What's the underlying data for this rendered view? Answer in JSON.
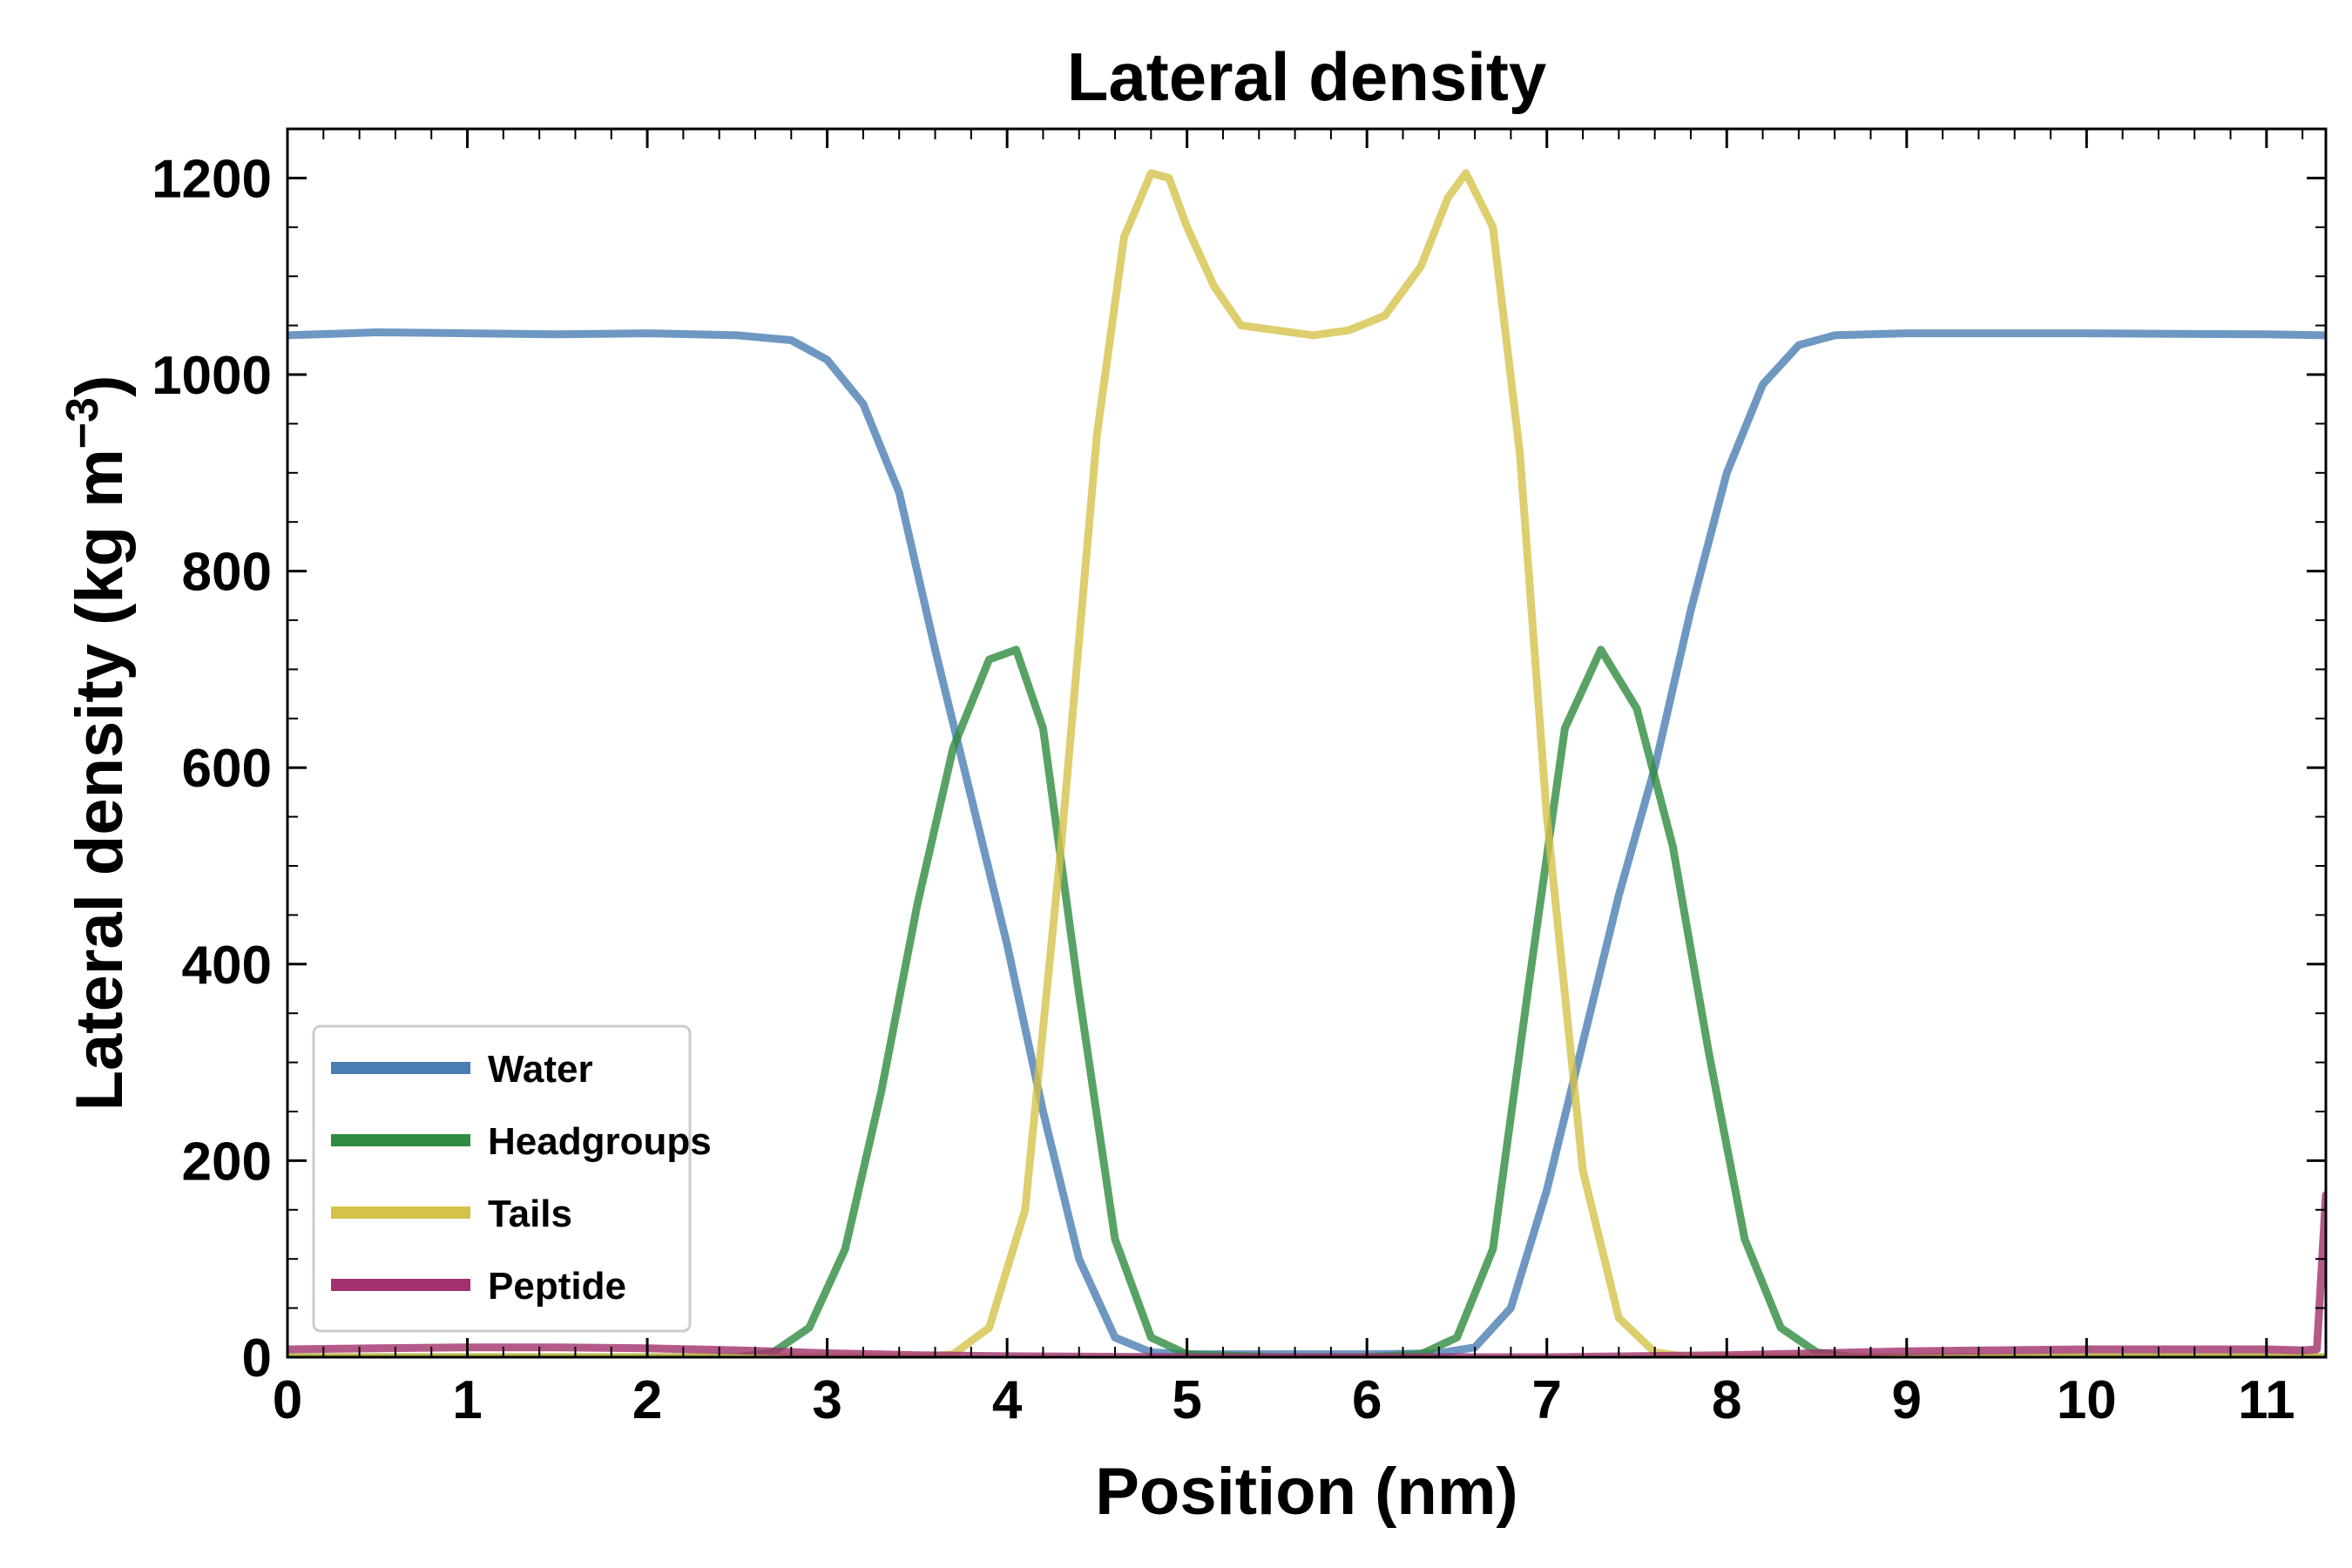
{
  "chart_data": {
    "type": "line",
    "title": "Lateral density",
    "xlabel": "Position (nm)",
    "ylabel": "Lateral density (kg m",
    "ylabel_sup": "−3",
    "ylabel_close": ")",
    "xlim": [
      0,
      11.33
    ],
    "ylim": [
      0,
      1250
    ],
    "xticks": [
      "0",
      "1",
      "2",
      "3",
      "4",
      "5",
      "6",
      "7",
      "8",
      "9",
      "10",
      "11"
    ],
    "yticks": [
      "0",
      "200",
      "400",
      "600",
      "800",
      "1000",
      "1200"
    ],
    "xtick_values": [
      0,
      1,
      2,
      3,
      4,
      5,
      6,
      7,
      8,
      9,
      10,
      11
    ],
    "ytick_values": [
      0,
      200,
      400,
      600,
      800,
      1000,
      1200
    ],
    "grid": false,
    "legend_position": "lower-left",
    "series": [
      {
        "name": "Water",
        "color": "#4a7eb3",
        "x": [
          0,
          0.5,
          1,
          1.5,
          2,
          2.5,
          2.8,
          3,
          3.2,
          3.4,
          3.6,
          3.8,
          4,
          4.2,
          4.4,
          4.6,
          4.8,
          5,
          6,
          6.4,
          6.6,
          6.8,
          7,
          7.2,
          7.4,
          7.6,
          7.8,
          8,
          8.2,
          8.4,
          8.6,
          9,
          10,
          11,
          11.33
        ],
        "y": [
          1040,
          1043,
          1042,
          1041,
          1042,
          1040,
          1035,
          1015,
          970,
          880,
          720,
          570,
          420,
          250,
          100,
          20,
          5,
          3,
          3,
          4,
          10,
          50,
          170,
          320,
          470,
          600,
          760,
          900,
          990,
          1030,
          1040,
          1042,
          1042,
          1041,
          1040
        ]
      },
      {
        "name": "Headgroups",
        "color": "#2e8b3f",
        "x": [
          0,
          2.5,
          2.7,
          2.9,
          3.1,
          3.3,
          3.5,
          3.7,
          3.9,
          4.05,
          4.2,
          4.4,
          4.6,
          4.8,
          5,
          5.5,
          6,
          6.3,
          6.5,
          6.7,
          6.9,
          7.1,
          7.3,
          7.5,
          7.7,
          7.9,
          8.1,
          8.3,
          8.5,
          8.7,
          9,
          11.33
        ],
        "y": [
          0,
          0,
          5,
          30,
          110,
          270,
          460,
          620,
          710,
          720,
          640,
          370,
          120,
          20,
          3,
          0,
          0,
          3,
          20,
          110,
          380,
          640,
          720,
          660,
          520,
          310,
          120,
          30,
          5,
          0,
          0,
          0
        ]
      },
      {
        "name": "Tails",
        "color": "#d4c24a",
        "x": [
          0,
          3.5,
          3.7,
          3.9,
          4.1,
          4.3,
          4.5,
          4.65,
          4.8,
          4.9,
          5,
          5.15,
          5.3,
          5.5,
          5.7,
          5.9,
          6.1,
          6.3,
          6.45,
          6.55,
          6.7,
          6.85,
          7,
          7.2,
          7.4,
          7.6,
          7.8,
          8,
          11.33
        ],
        "y": [
          0,
          0,
          3,
          30,
          150,
          520,
          940,
          1140,
          1205,
          1200,
          1150,
          1090,
          1050,
          1045,
          1040,
          1045,
          1060,
          1110,
          1180,
          1205,
          1150,
          920,
          550,
          190,
          40,
          5,
          0,
          0,
          0
        ]
      },
      {
        "name": "Peptide",
        "color": "#a1316d",
        "x": [
          0,
          0.5,
          1,
          1.5,
          2,
          2.5,
          3,
          3.5,
          4,
          5,
          6,
          7,
          8,
          8.5,
          9,
          9.5,
          10,
          10.5,
          11,
          11.2,
          11.28,
          11.33
        ],
        "y": [
          8,
          9,
          10,
          10,
          9,
          7,
          4,
          2,
          1,
          0,
          0,
          0,
          2,
          4,
          6,
          7,
          8,
          8,
          8,
          7,
          8,
          165
        ]
      }
    ]
  }
}
